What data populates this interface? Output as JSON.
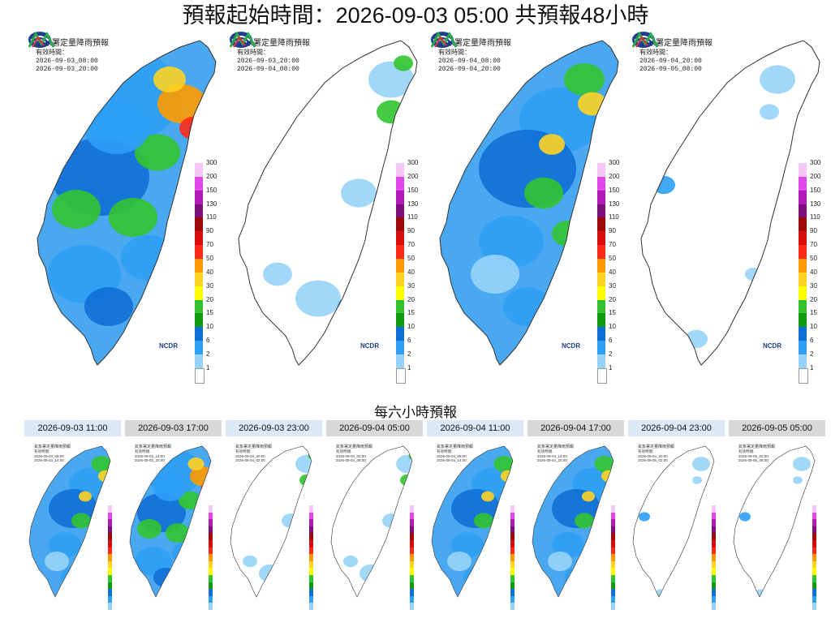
{
  "header": {
    "title": "預報起始時間：2026-09-03 05:00 共預報48小時"
  },
  "colorbar": {
    "ticks": [
      "300",
      "200",
      "150",
      "130",
      "110",
      "90",
      "70",
      "50",
      "40",
      "30",
      "20",
      "15",
      "10",
      "6",
      "2",
      "1"
    ],
    "colors": [
      "#f6c6f7",
      "#e146e8",
      "#b01bb7",
      "#7c0f7c",
      "#9e0a0a",
      "#d70c0c",
      "#fe2a18",
      "#fe9a00",
      "#fed321",
      "#fefe00",
      "#31c430",
      "#119a10",
      "#0f6fd6",
      "#2d9ff4",
      "#97d3f8",
      "#ffffff"
    ]
  },
  "big_panels": [
    {
      "title": "氣象署定量降雨預報",
      "label": "有效時間：",
      "valid_start": "2026-09-03_08:00",
      "valid_end": "2026-09-03_20:00",
      "ncdr": "NCDR",
      "intensity": "high"
    },
    {
      "title": "氣象署定量降雨預報",
      "label": "有效時間：",
      "valid_start": "2026-09-03_20:00",
      "valid_end": "2026-09-04_08:00",
      "ncdr": "NCDR",
      "intensity": "low"
    },
    {
      "title": "氣象署定量降雨預報",
      "label": "有效時間：",
      "valid_start": "2026-09-04_08:00",
      "valid_end": "2026-09-04_20:00",
      "ncdr": "NCDR",
      "intensity": "mid"
    },
    {
      "title": "氣象署定量降雨預報",
      "label": "有效時間：",
      "valid_start": "2026-09-04_20:00",
      "valid_end": "2026-09-05_08:00",
      "ncdr": "NCDR",
      "intensity": "verylow"
    }
  ],
  "section": {
    "six_hour_title": "每六小時預報"
  },
  "small_panels": [
    {
      "time": "2026-09-03 11:00",
      "state": "on",
      "title": "氣象署定量降雨預報",
      "label": "有效時間：",
      "valid_start": "2026-09-03_08:00",
      "valid_end": "2026-09-03_14:00"
    },
    {
      "time": "2026-09-03 17:00",
      "state": "off",
      "title": "氣象署定量降雨預報",
      "label": "有效時間：",
      "valid_start": "2026-09-03_14:00",
      "valid_end": "2026-09-03_20:00"
    },
    {
      "time": "2026-09-03 23:00",
      "state": "on",
      "title": "氣象署定量降雨預報",
      "label": "有效時間：",
      "valid_start": "2026-09-03_20:00",
      "valid_end": "2026-09-04_02:00"
    },
    {
      "time": "2026-09-04 05:00",
      "state": "off",
      "title": "氣象署定量降雨預報",
      "label": "有效時間：",
      "valid_start": "2026-09-04_02:00",
      "valid_end": "2026-09-04_08:00"
    },
    {
      "time": "2026-09-04 11:00",
      "state": "on",
      "title": "氣象署定量降雨預報",
      "label": "有效時間：",
      "valid_start": "2026-09-04_08:00",
      "valid_end": "2026-09-04_14:00"
    },
    {
      "time": "2026-09-04 17:00",
      "state": "off",
      "title": "氣象署定量降雨預報",
      "label": "有效時間：",
      "valid_start": "2026-09-04_14:00",
      "valid_end": "2026-09-04_20:00"
    },
    {
      "time": "2026-09-04 23:00",
      "state": "on",
      "title": "氣象署定量降雨預報",
      "label": "有效時間：",
      "valid_start": "2026-09-04_20:00",
      "valid_end": "2026-09-05_02:00"
    },
    {
      "time": "2026-09-05 05:00",
      "state": "off",
      "title": "氣象署定量降雨預報",
      "label": "有效時間：",
      "valid_start": "2026-09-05_02:00",
      "valid_end": "2026-09-05_08:00"
    }
  ]
}
